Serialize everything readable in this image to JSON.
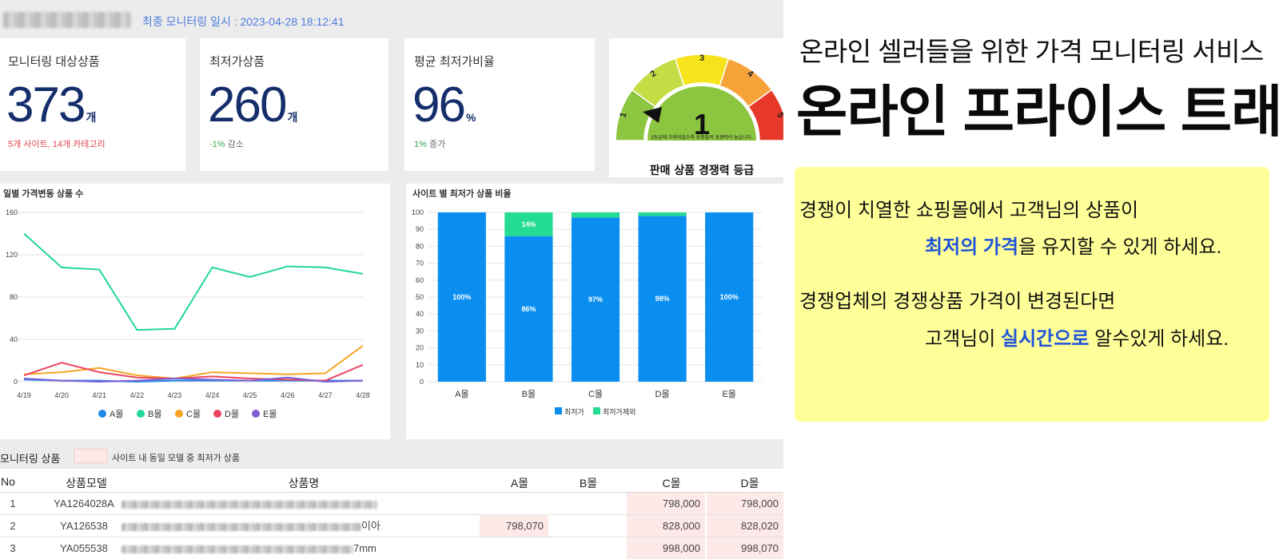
{
  "header": {
    "last_monitoring": "최종 모니터링 일시 : 2023-04-28 18:12:41"
  },
  "cards": [
    {
      "title": "모니터링 대상상품",
      "value": "373",
      "unit": "개",
      "sub": "5개 사이트, 14개 카테고리",
      "sub_color": "#e0414f"
    },
    {
      "title": "최저가상품",
      "value": "260",
      "unit": "개",
      "sub_value": "-1%",
      "sub_label": "감소",
      "sub_color": "#36a54a"
    },
    {
      "title": "평균 최저가비율",
      "value": "96",
      "unit": "%",
      "sub_value": "1%",
      "sub_label": "증가",
      "sub_color": "#36a54a"
    }
  ],
  "gauge": {
    "labels": [
      "1",
      "2",
      "3",
      "4",
      "5"
    ],
    "colors": [
      "#8cc540",
      "#c6dc45",
      "#f6e31c",
      "#f6a33a",
      "#e8382b"
    ],
    "current": "1",
    "note": "1등급에 가까워질수록 상품들의 경쟁력이 높습니다.",
    "caption": "판매 상품 경쟁력 등급"
  },
  "chart_data": [
    {
      "type": "line",
      "title": "일별 가격변동 상품 수",
      "x": [
        "4/19",
        "4/20",
        "4/21",
        "4/22",
        "4/23",
        "4/24",
        "4/25",
        "4/26",
        "4/27",
        "4/28"
      ],
      "yticks": [
        0,
        40,
        80,
        120,
        160
      ],
      "ylim": [
        0,
        160
      ],
      "grid": true,
      "legend_position": "bottom",
      "series": [
        {
          "name": "A몰",
          "color": "#1e88e5",
          "values": [
            2,
            1,
            1,
            0,
            1,
            1,
            1,
            1,
            1,
            1
          ]
        },
        {
          "name": "B몰",
          "color": "#22d69a",
          "values": [
            140,
            108,
            106,
            49,
            50,
            108,
            99,
            109,
            108,
            102
          ]
        },
        {
          "name": "C몰",
          "color": "#f5a623",
          "values": [
            7,
            9,
            13,
            6,
            3,
            9,
            8,
            7,
            8,
            34
          ]
        },
        {
          "name": "D몰",
          "color": "#ec4561",
          "values": [
            6,
            18,
            9,
            4,
            3,
            5,
            3,
            2,
            1,
            16
          ]
        },
        {
          "name": "E몰",
          "color": "#7e5fd6",
          "values": [
            3,
            1,
            0,
            1,
            3,
            2,
            1,
            4,
            0,
            1
          ]
        }
      ]
    },
    {
      "type": "bar",
      "stacked": true,
      "title": "사이트 별 최저가 상품 비율",
      "categories": [
        "A몰",
        "B몰",
        "C몰",
        "D몰",
        "E몰"
      ],
      "yticks": [
        0,
        10,
        20,
        30,
        40,
        50,
        60,
        70,
        80,
        90,
        100
      ],
      "ylim": [
        0,
        100
      ],
      "legend_position": "bottom",
      "series": [
        {
          "name": "최저가",
          "color": "#0a8ff0",
          "values": [
            100,
            86,
            97,
            98,
            100
          ],
          "labels": [
            "100%",
            "86%",
            "97%",
            "98%",
            "100%"
          ]
        },
        {
          "name": "최저가제외",
          "color": "#23db91",
          "values": [
            0,
            14,
            3,
            2,
            0
          ],
          "labels": [
            "",
            "14%",
            "",
            "",
            ""
          ]
        }
      ]
    }
  ],
  "monitoring": {
    "title": "모니터링 상품",
    "legend": "사이트 내 동일 모델 중 최저가 상품"
  },
  "table": {
    "headers": {
      "no": "No",
      "model": "상품모델",
      "name": "상품명",
      "a": "A몰",
      "b": "B몰",
      "c": "C몰",
      "d": "D몰"
    },
    "rows": [
      {
        "no": "1",
        "model": "YA1264028A",
        "name_tail": "",
        "a": "",
        "b": "",
        "c": "798,000",
        "d": "798,000"
      },
      {
        "no": "2",
        "model": "YA126538",
        "name_tail": "이아",
        "a": "798,070",
        "b": "",
        "c": "828,000",
        "d": "828,020"
      },
      {
        "no": "3",
        "model": "YA055538",
        "name_tail": "7mm",
        "a": "",
        "b": "",
        "c": "998,000",
        "d": "998,070"
      }
    ]
  },
  "promo": {
    "subtitle": "온라인 셀러들을 위한 가격 모니터링 서비스",
    "title": "온라인 프라이스 트래커",
    "line1": "경쟁이 치열한 쇼핑몰에서 고객님의 상품이",
    "line2_hl": "최저의 가격",
    "line2_rest": "을 유지할 수 있게 하세요.",
    "line3": "경쟁업체의 경쟁상품 가격이 변경된다면",
    "line4_pre": "고객님이 ",
    "line4_hl": "실시간으로",
    "line4_rest": " 알수있게 하세요.",
    "highlight_color": "#1f53d9",
    "note_bg": "#ffff99"
  }
}
